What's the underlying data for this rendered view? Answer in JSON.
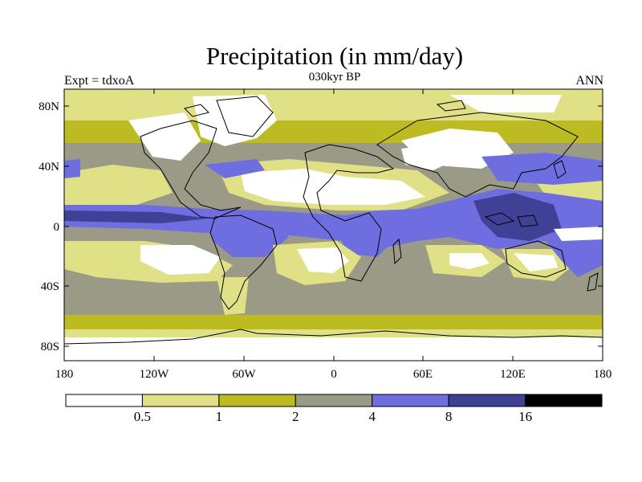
{
  "title": "Precipitation (in mm/day)",
  "left_label": "Expt = tdxoA",
  "subtitle": "030kyr BP",
  "right_label": "ANN",
  "y_ticks": [
    "80N",
    "40N",
    "0",
    "40S",
    "80S"
  ],
  "x_ticks": [
    "180",
    "120W",
    "60W",
    "0",
    "60E",
    "120E",
    "180"
  ],
  "colorbar": {
    "colors": [
      "#ffffff",
      "#e0e086",
      "#bcbc22",
      "#9a9a86",
      "#6e6ee0",
      "#404096",
      "#000000"
    ],
    "labels": [
      "0.5",
      "1",
      "2",
      "4",
      "8",
      "16"
    ]
  },
  "map_colors": {
    "white": "#ffffff",
    "light": "#e0e086",
    "olive": "#bcbc22",
    "gray": "#9a9a86",
    "blue": "#6e6ee0",
    "dark": "#404096",
    "coast": "#000000"
  }
}
